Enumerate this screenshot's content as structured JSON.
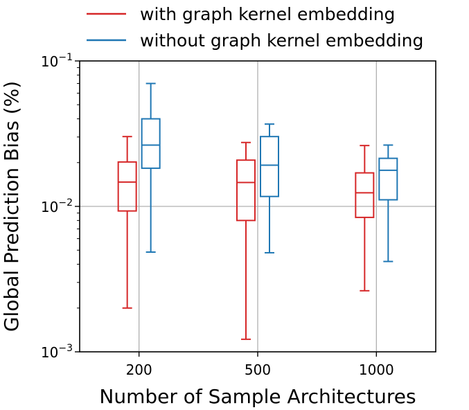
{
  "chart_data": {
    "type": "boxplot",
    "title": "",
    "xlabel": "Number of Sample Architectures",
    "ylabel": "Global Prediction Bias (%)",
    "yscale": "log",
    "ylim": [
      0.001,
      0.1
    ],
    "yticks": [
      {
        "value": 0.1,
        "base": "10",
        "exp": "−1"
      },
      {
        "value": 0.01,
        "base": "10",
        "exp": "−2"
      },
      {
        "value": 0.001,
        "base": "10",
        "exp": "−3"
      }
    ],
    "categories": [
      "200",
      "500",
      "1000"
    ],
    "grid": true,
    "legend_position": "top",
    "series": [
      {
        "name": "with graph kernel embedding",
        "color": "#d62728",
        "boxes": [
          {
            "whisker_low": 0.002,
            "q1": 0.0093,
            "median": 0.0147,
            "q3": 0.0202,
            "whisker_high": 0.0302
          },
          {
            "whisker_low": 0.00122,
            "q1": 0.008,
            "median": 0.0146,
            "q3": 0.0208,
            "whisker_high": 0.0275
          },
          {
            "whisker_low": 0.00263,
            "q1": 0.0084,
            "median": 0.0124,
            "q3": 0.017,
            "whisker_high": 0.0262
          }
        ]
      },
      {
        "name": "without graph kernel embedding",
        "color": "#1f77b4",
        "boxes": [
          {
            "whisker_low": 0.00485,
            "q1": 0.0183,
            "median": 0.0264,
            "q3": 0.04,
            "whisker_high": 0.07
          },
          {
            "whisker_low": 0.0048,
            "q1": 0.0117,
            "median": 0.0192,
            "q3": 0.0302,
            "whisker_high": 0.0368
          },
          {
            "whisker_low": 0.00418,
            "q1": 0.0111,
            "median": 0.0177,
            "q3": 0.0214,
            "whisker_high": 0.0264
          }
        ]
      }
    ]
  }
}
